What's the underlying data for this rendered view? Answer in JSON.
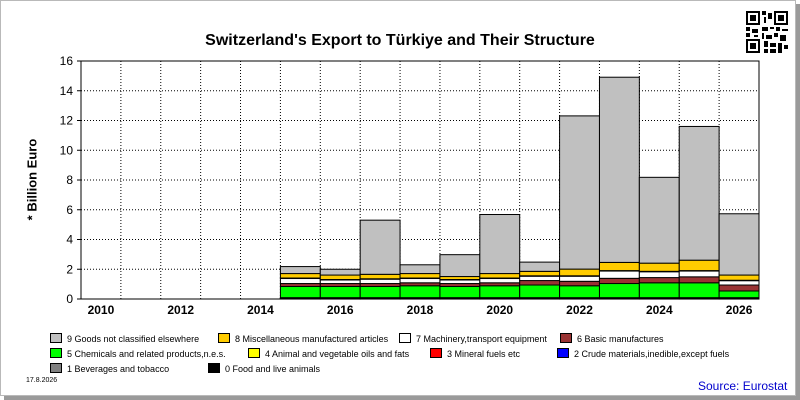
{
  "chart_data": {
    "type": "bar",
    "stacked": true,
    "title": "Switzerland's Export to Türkiye and Their Structure",
    "ylabel": "* Billion Euro",
    "xlabel": "",
    "ylim": [
      0,
      16
    ],
    "yticks": [
      0,
      2,
      4,
      6,
      8,
      10,
      12,
      14,
      16
    ],
    "x": [
      2010,
      2011,
      2012,
      2013,
      2014,
      2015,
      2016,
      2017,
      2018,
      2019,
      2020,
      2021,
      2022,
      2023,
      2024,
      2025,
      2026
    ],
    "xtick_labels": [
      "2010",
      "2012",
      "2014",
      "2016",
      "2018",
      "2020",
      "2022",
      "2024",
      "2026"
    ],
    "grid": true,
    "series": [
      {
        "name": "0 Food and live animals",
        "color": "#000000",
        "values": [
          0,
          0,
          0,
          0,
          0,
          0.03,
          0.03,
          0.03,
          0.03,
          0.03,
          0.03,
          0.03,
          0.03,
          0.03,
          0.03,
          0.03,
          0.03
        ]
      },
      {
        "name": "1 Beverages and tobacco",
        "color": "#808080",
        "values": [
          0,
          0,
          0,
          0,
          0,
          0.02,
          0.02,
          0.02,
          0.02,
          0.02,
          0.02,
          0.02,
          0.02,
          0.02,
          0.02,
          0.02,
          0.02
        ]
      },
      {
        "name": "2 Crude materials,inedible,except fuels",
        "color": "#0000ff",
        "values": [
          0,
          0,
          0,
          0,
          0,
          0.02,
          0.02,
          0.02,
          0.02,
          0.02,
          0.02,
          0.02,
          0.02,
          0.02,
          0.02,
          0.02,
          0.02
        ]
      },
      {
        "name": "3 Mineral fuels etc",
        "color": "#ff0000",
        "values": [
          0,
          0,
          0,
          0,
          0,
          0.02,
          0.02,
          0.02,
          0.02,
          0.02,
          0.02,
          0.02,
          0.02,
          0.02,
          0.02,
          0.02,
          0.02
        ]
      },
      {
        "name": "5 Chemicals and related products,n.e.s.",
        "color": "#00ff00",
        "values": [
          0,
          0,
          0,
          0,
          0,
          0.75,
          0.75,
          0.75,
          0.8,
          0.75,
          0.8,
          0.85,
          0.8,
          0.95,
          1.0,
          1.0,
          0.45
        ]
      },
      {
        "name": "6 Basic manufactures",
        "color": "#993333",
        "values": [
          0,
          0,
          0,
          0,
          0,
          0.2,
          0.2,
          0.2,
          0.2,
          0.2,
          0.2,
          0.3,
          0.3,
          0.35,
          0.35,
          0.4,
          0.4
        ]
      },
      {
        "name": "7 Machinery,transport equipment",
        "color": "#ffffff",
        "values": [
          0,
          0,
          0,
          0,
          0,
          0.35,
          0.25,
          0.3,
          0.3,
          0.25,
          0.3,
          0.3,
          0.35,
          0.5,
          0.4,
          0.4,
          0.3
        ]
      },
      {
        "name": "4 Animal and vegetable oils and fats",
        "color": "#ffff00",
        "values": [
          0,
          0,
          0,
          0,
          0,
          0.02,
          0.02,
          0.02,
          0.02,
          0.02,
          0.02,
          0.02,
          0.02,
          0.02,
          0.02,
          0.02,
          0.02
        ]
      },
      {
        "name": "8 Miscellaneous manufactured articles",
        "color": "#ffcc00",
        "values": [
          0,
          0,
          0,
          0,
          0,
          0.3,
          0.3,
          0.3,
          0.3,
          0.2,
          0.3,
          0.3,
          0.45,
          0.55,
          0.55,
          0.7,
          0.35
        ]
      },
      {
        "name": "9 Goods not classified elsewhere",
        "color": "#c0c0c0",
        "values": [
          0,
          0,
          0,
          0,
          0,
          0.47,
          0.39,
          3.64,
          0.59,
          1.47,
          3.97,
          0.62,
          10.3,
          12.45,
          5.77,
          8.99,
          4.12
        ]
      }
    ],
    "legend": [
      {
        "label": "9 Goods not classified elsewhere",
        "color": "#c0c0c0"
      },
      {
        "label": "8 Miscellaneous manufactured articles",
        "color": "#ffcc00"
      },
      {
        "label": "7 Machinery,transport equipment",
        "color": "#ffffff"
      },
      {
        "label": "6 Basic manufactures",
        "color": "#993333"
      },
      {
        "label": "5 Chemicals and related products,n.e.s.",
        "color": "#00ff00"
      },
      {
        "label": "4 Animal and vegetable oils and fats",
        "color": "#ffff00"
      },
      {
        "label": "3 Mineral fuels etc",
        "color": "#ff0000"
      },
      {
        "label": "2 Crude materials,inedible,except fuels",
        "color": "#0000ff"
      },
      {
        "label": "1 Beverages and tobacco",
        "color": "#808080"
      },
      {
        "label": "0 Food and live animals",
        "color": "#000000"
      }
    ],
    "legend_placement": "bottom"
  },
  "footer": {
    "date": "17.8.2026",
    "source": "Source: Eurostat"
  }
}
